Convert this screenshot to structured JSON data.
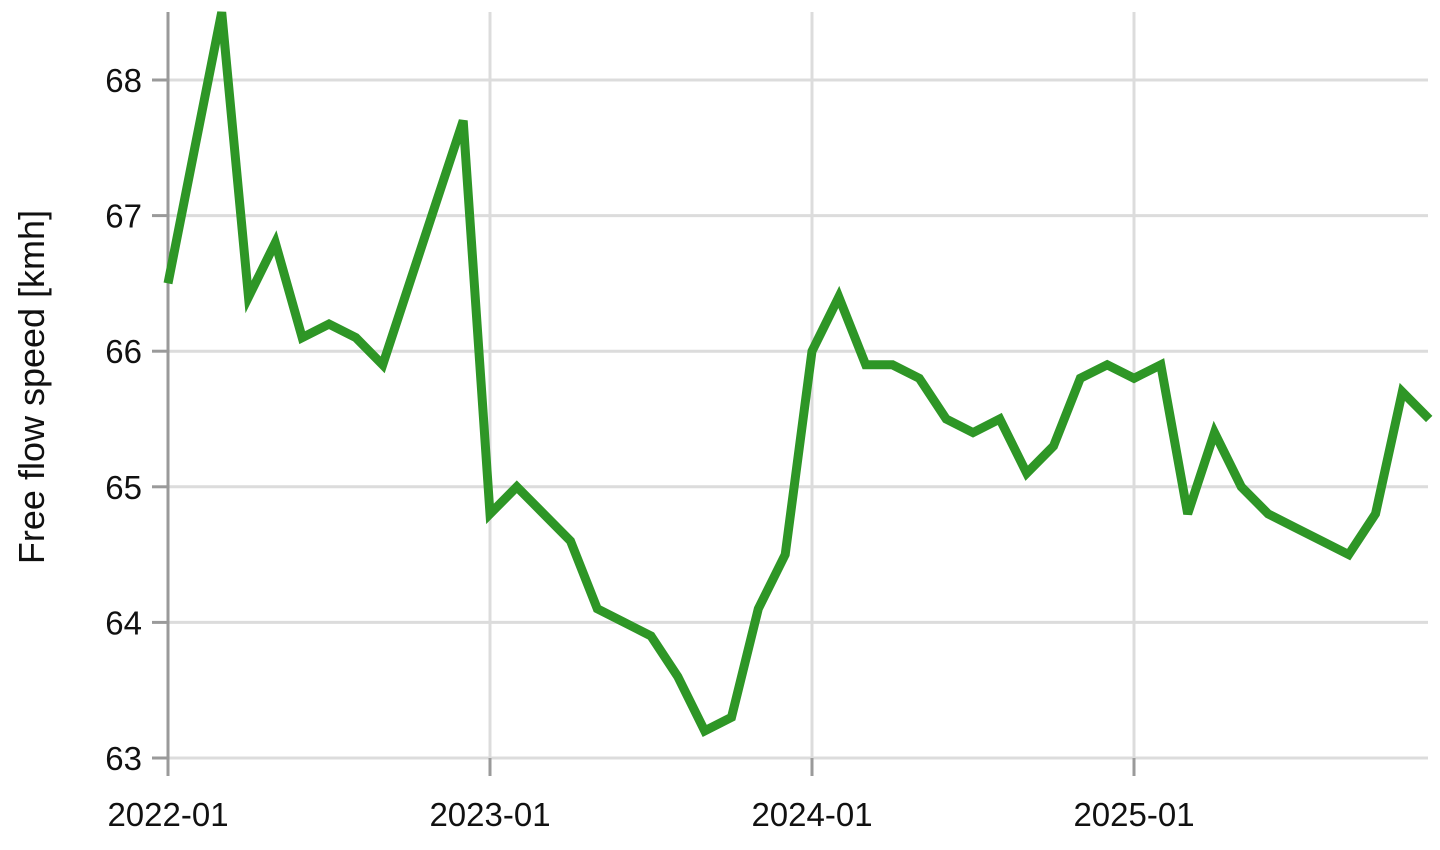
{
  "chart_data": {
    "type": "line",
    "title": "",
    "xlabel": "",
    "ylabel": "Free flow speed [kmh]",
    "ylim": [
      63,
      68.5
    ],
    "xlim": [
      "2022-01",
      "2025-12"
    ],
    "grid": true,
    "y_ticks": [
      63,
      64,
      65,
      66,
      67,
      68
    ],
    "y_tick_labels": [
      "63",
      "64",
      "65",
      "66",
      "67",
      "68"
    ],
    "x_ticks": [
      "2022-01",
      "2023-01",
      "2024-01",
      "2025-01"
    ],
    "x_tick_labels": [
      "2022-01",
      "2023-01",
      "2024-01",
      "2025-01"
    ],
    "series": [
      {
        "color": "#2e9626",
        "x": [
          "2022-01",
          "2022-02",
          "2022-03",
          "2022-04",
          "2022-05",
          "2022-06",
          "2022-07",
          "2022-08",
          "2022-09",
          "2022-10",
          "2022-11",
          "2022-12",
          "2023-01",
          "2023-02",
          "2023-03",
          "2023-04",
          "2023-05",
          "2023-06",
          "2023-07",
          "2023-08",
          "2023-09",
          "2023-10",
          "2023-11",
          "2023-12",
          "2024-01",
          "2024-02",
          "2024-03",
          "2024-04",
          "2024-05",
          "2024-06",
          "2024-07",
          "2024-08",
          "2024-09",
          "2024-10",
          "2024-11",
          "2024-12",
          "2025-01",
          "2025-02",
          "2025-03",
          "2025-04",
          "2025-05",
          "2025-06",
          "2025-07",
          "2025-08",
          "2025-09",
          "2025-10",
          "2025-11",
          "2025-12"
        ],
        "values": [
          66.5,
          67.5,
          68.5,
          66.4,
          66.8,
          66.1,
          66.2,
          66.1,
          65.9,
          66.5,
          67.1,
          67.7,
          64.8,
          65.0,
          64.8,
          64.6,
          64.1,
          64.0,
          63.9,
          63.6,
          63.2,
          63.3,
          64.1,
          64.5,
          66.0,
          66.4,
          65.9,
          65.9,
          65.8,
          65.5,
          65.4,
          65.5,
          65.1,
          65.3,
          65.8,
          65.9,
          65.8,
          65.9,
          64.8,
          65.4,
          65.0,
          64.8,
          64.7,
          64.6,
          64.5,
          64.8,
          65.7,
          65.5
        ]
      }
    ]
  }
}
